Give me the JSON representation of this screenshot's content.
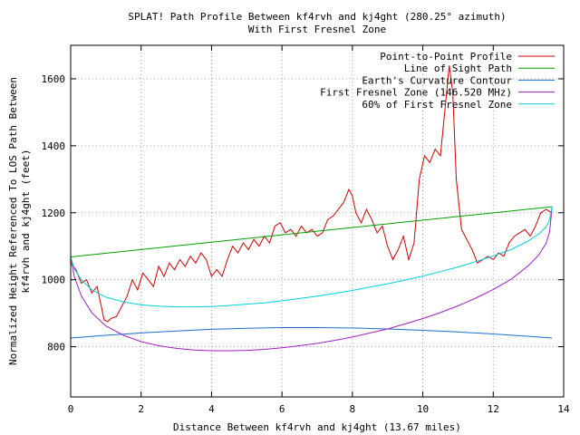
{
  "chart_data": {
    "type": "line",
    "title": "SPLAT! Path Profile Between kf4rvh and kj4ght (280.25° azimuth)",
    "subtitle": "With First Fresnel Zone",
    "xlabel": "Distance Between kf4rvh and kj4ght (13.67 miles)",
    "ylabel_line1": "Normalized Height Referenced To LOS Path Between",
    "ylabel_line2": "kf4rvh and kj4ght (feet)",
    "xlim": [
      0,
      14
    ],
    "ylim": [
      650,
      1700
    ],
    "x_ticks": [
      0,
      2,
      4,
      6,
      8,
      10,
      12,
      14
    ],
    "y_ticks": [
      800,
      1000,
      1200,
      1400,
      1600
    ],
    "grid": true,
    "legend_position": "top-right",
    "series": [
      {
        "name": "Point-to-Point Profile",
        "color": "#cc0000",
        "x": [
          0,
          0.15,
          0.3,
          0.45,
          0.6,
          0.75,
          0.85,
          0.95,
          1.05,
          1.15,
          1.3,
          1.45,
          1.6,
          1.75,
          1.9,
          2.05,
          2.2,
          2.35,
          2.5,
          2.65,
          2.8,
          2.95,
          3.1,
          3.25,
          3.4,
          3.55,
          3.7,
          3.85,
          4.0,
          4.15,
          4.3,
          4.45,
          4.6,
          4.75,
          4.9,
          5.05,
          5.2,
          5.35,
          5.5,
          5.65,
          5.8,
          5.95,
          6.1,
          6.25,
          6.4,
          6.55,
          6.7,
          6.85,
          7.0,
          7.15,
          7.3,
          7.45,
          7.6,
          7.75,
          7.9,
          8.0,
          8.1,
          8.25,
          8.4,
          8.55,
          8.7,
          8.85,
          9.0,
          9.15,
          9.3,
          9.45,
          9.6,
          9.75,
          9.9,
          10.05,
          10.2,
          10.35,
          10.5,
          10.65,
          10.75,
          10.85,
          10.95,
          11.1,
          11.25,
          11.4,
          11.55,
          11.7,
          11.85,
          12.0,
          12.15,
          12.3,
          12.45,
          12.6,
          12.75,
          12.9,
          13.05,
          13.2,
          13.35,
          13.5,
          13.67
        ],
        "y": [
          1050,
          1030,
          990,
          1000,
          960,
          980,
          930,
          880,
          875,
          885,
          890,
          920,
          950,
          1000,
          970,
          1020,
          1000,
          980,
          1040,
          1010,
          1050,
          1030,
          1060,
          1040,
          1070,
          1050,
          1080,
          1060,
          1010,
          1030,
          1010,
          1060,
          1100,
          1080,
          1110,
          1090,
          1120,
          1100,
          1130,
          1110,
          1160,
          1170,
          1140,
          1150,
          1130,
          1160,
          1140,
          1150,
          1130,
          1140,
          1180,
          1190,
          1210,
          1230,
          1270,
          1250,
          1200,
          1170,
          1210,
          1180,
          1140,
          1160,
          1100,
          1060,
          1090,
          1130,
          1060,
          1110,
          1300,
          1370,
          1350,
          1390,
          1370,
          1530,
          1640,
          1560,
          1300,
          1150,
          1120,
          1090,
          1050,
          1060,
          1070,
          1060,
          1080,
          1070,
          1110,
          1130,
          1140,
          1150,
          1130,
          1160,
          1200,
          1210,
          1200
        ]
      },
      {
        "name": "Line of Sight Path",
        "color": "#00a000",
        "x": [
          0,
          13.67
        ],
        "y": [
          1068,
          1218
        ]
      },
      {
        "name": "Earth's Curvature Contour",
        "color": "#1a6fd0",
        "x": [
          0,
          1,
          2,
          3,
          4,
          5,
          6,
          6.835,
          7,
          8,
          9,
          10,
          11,
          12,
          13,
          13.67
        ],
        "y": [
          826,
          834,
          841,
          847,
          852,
          855,
          857,
          857,
          857,
          856,
          853,
          849,
          844,
          838,
          831,
          826
        ]
      },
      {
        "name": "First Fresnel Zone (146.520 MHz)",
        "color": "#a020c0",
        "x": [
          0,
          0.1,
          0.3,
          0.6,
          1,
          1.5,
          2,
          2.5,
          3,
          3.5,
          4,
          4.5,
          5,
          5.5,
          6,
          6.5,
          7,
          7.5,
          8,
          8.5,
          9,
          9.5,
          10,
          10.5,
          11,
          11.5,
          12,
          12.5,
          13,
          13.3,
          13.5,
          13.6,
          13.67
        ],
        "y": [
          1068,
          1010,
          952,
          901,
          862,
          834,
          815,
          803,
          795,
          790,
          788,
          788,
          789,
          792,
          797,
          803,
          810,
          819,
          829,
          841,
          853,
          868,
          884,
          902,
          922,
          945,
          971,
          1001,
          1042,
          1075,
          1109,
          1143,
          1218
        ]
      },
      {
        "name": "60% of First Fresnel Zone",
        "color": "#00d0d8",
        "x": [
          0,
          0.1,
          0.3,
          0.6,
          1,
          1.5,
          2,
          2.5,
          3,
          3.5,
          4,
          4.5,
          5,
          5.5,
          6,
          6.5,
          7,
          7.5,
          8,
          8.5,
          9,
          9.5,
          10,
          10.5,
          11,
          11.5,
          12,
          12.5,
          13,
          13.3,
          13.5,
          13.6,
          13.67
        ],
        "y": [
          1068,
          1033,
          1000,
          970,
          948,
          934,
          925,
          921,
          919,
          919,
          920,
          923,
          927,
          931,
          937,
          944,
          951,
          959,
          968,
          978,
          988,
          999,
          1011,
          1024,
          1038,
          1054,
          1071,
          1090,
          1116,
          1137,
          1158,
          1179,
          1218
        ]
      }
    ]
  }
}
